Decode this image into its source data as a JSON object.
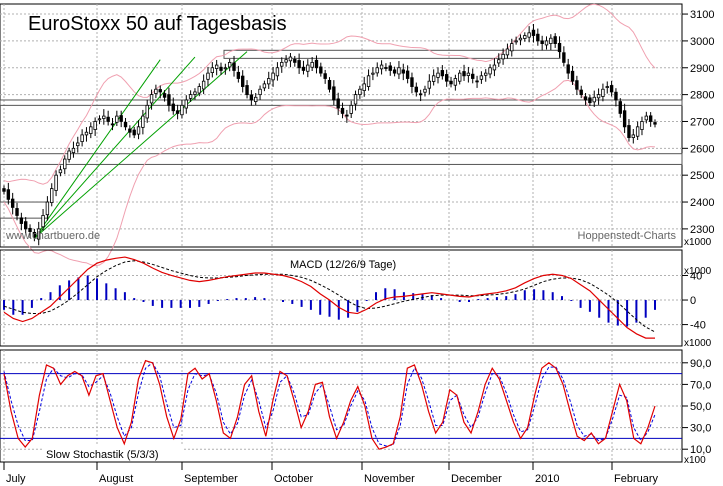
{
  "colors": {
    "background": "#ffffff",
    "grid": "#b0b0b0",
    "candle_up": "#ffffff",
    "candle_down": "#000000",
    "bollinger": "#f0a0b0",
    "trendline": "#00a000",
    "macd_line": "#e00000",
    "macd_signal": "#000000",
    "macd_hist": "#0000c0",
    "stoch_k": "#e00000",
    "stoch_d": "#0000e0",
    "stoch_level": "#0000c0"
  },
  "chart_data": [
    {
      "type": "candlestick",
      "title": "EuroStoxx 50 auf Tagesbasis",
      "source_left": "www.chartbuero.de",
      "source_right": "Hoppenstedt-Charts",
      "scale_note": "x1000",
      "y_ticks": [
        2300,
        2400,
        2500,
        2600,
        2700,
        2800,
        2900,
        3000,
        3100
      ],
      "ylim": [
        2240,
        3130
      ],
      "x_labels": [
        "July",
        "August",
        "September",
        "October",
        "November",
        "December",
        "2010",
        "February"
      ],
      "close": [
        2440,
        2410,
        2380,
        2350,
        2320,
        2300,
        2290,
        2270,
        2300,
        2350,
        2400,
        2450,
        2500,
        2520,
        2560,
        2590,
        2600,
        2620,
        2650,
        2660,
        2680,
        2700,
        2710,
        2720,
        2700,
        2690,
        2720,
        2700,
        2680,
        2660,
        2650,
        2680,
        2720,
        2760,
        2800,
        2820,
        2810,
        2790,
        2760,
        2740,
        2730,
        2760,
        2780,
        2800,
        2810,
        2830,
        2850,
        2880,
        2900,
        2910,
        2890,
        2900,
        2920,
        2890,
        2860,
        2830,
        2800,
        2780,
        2790,
        2820,
        2840,
        2860,
        2880,
        2900,
        2920,
        2930,
        2940,
        2920,
        2900,
        2890,
        2910,
        2920,
        2900,
        2880,
        2860,
        2820,
        2780,
        2750,
        2730,
        2720,
        2760,
        2800,
        2820,
        2840,
        2870,
        2880,
        2900,
        2910,
        2900,
        2890,
        2880,
        2900,
        2880,
        2860,
        2830,
        2810,
        2800,
        2820,
        2850,
        2870,
        2880,
        2870,
        2850,
        2840,
        2860,
        2880,
        2870,
        2880,
        2860,
        2850,
        2870,
        2880,
        2900,
        2910,
        2930,
        2950,
        2970,
        2990,
        3000,
        3010,
        3020,
        3030,
        3020,
        3000,
        2990,
        3000,
        3010,
        2990,
        2960,
        2920,
        2880,
        2850,
        2820,
        2800,
        2780,
        2770,
        2790,
        2800,
        2820,
        2830,
        2810,
        2780,
        2730,
        2680,
        2640,
        2650,
        2680,
        2700,
        2720,
        2700,
        2690
      ],
      "support_zones": [
        [
          2935,
          2965
        ],
        [
          2760,
          2780
        ],
        [
          2540,
          2580
        ],
        [
          2340,
          2400
        ]
      ]
    },
    {
      "type": "line",
      "title": "MACD (12/26/9 Tage)",
      "scale_note": "x1000",
      "y_ticks": [
        40,
        0,
        -40
      ],
      "series": [
        {
          "name": "MACD",
          "values": [
            -20,
            -30,
            -35,
            -30,
            -20,
            -10,
            5,
            20,
            35,
            50,
            60,
            65,
            68,
            70,
            66,
            60,
            52,
            45,
            40,
            36,
            32,
            30,
            32,
            35,
            38,
            40,
            42,
            44,
            44,
            42,
            40,
            36,
            30,
            22,
            10,
            0,
            -12,
            -20,
            -22,
            -15,
            -5,
            2,
            5,
            6,
            8,
            10,
            12,
            10,
            8,
            6,
            5,
            8,
            10,
            12,
            15,
            20,
            28,
            35,
            40,
            42,
            40,
            35,
            25,
            15,
            0,
            -15,
            -30,
            -45,
            -55,
            -62,
            -62
          ]
        },
        {
          "name": "Signal",
          "values": [
            -10,
            -15,
            -20,
            -22,
            -22,
            -18,
            -10,
            0,
            12,
            25,
            38,
            48,
            56,
            62,
            64,
            62,
            58,
            53,
            48,
            44,
            40,
            37,
            36,
            36,
            37,
            38,
            40,
            41,
            42,
            42,
            42,
            40,
            37,
            32,
            25,
            17,
            8,
            -2,
            -10,
            -14,
            -13,
            -10,
            -6,
            -2,
            1,
            4,
            7,
            8,
            8,
            8,
            7,
            7,
            8,
            9,
            11,
            14,
            18,
            24,
            30,
            34,
            36,
            36,
            33,
            27,
            18,
            8,
            -4,
            -18,
            -32,
            -44,
            -52
          ]
        }
      ]
    },
    {
      "type": "line",
      "title": "Slow Stochastik (5/3/3)",
      "scale_note": "x100",
      "y_ticks": [
        90.0,
        70.0,
        50.0,
        30.0,
        10.0
      ],
      "levels": [
        80,
        20
      ],
      "series": [
        {
          "name": "%K",
          "values": [
            80,
            45,
            20,
            12,
            20,
            60,
            88,
            85,
            70,
            78,
            82,
            78,
            60,
            78,
            80,
            55,
            30,
            15,
            35,
            75,
            92,
            90,
            70,
            40,
            20,
            38,
            80,
            85,
            75,
            80,
            55,
            25,
            20,
            40,
            70,
            78,
            45,
            22,
            55,
            82,
            78,
            55,
            30,
            45,
            70,
            72,
            40,
            20,
            35,
            55,
            68,
            50,
            20,
            10,
            12,
            15,
            40,
            85,
            88,
            70,
            45,
            25,
            35,
            65,
            60,
            35,
            25,
            45,
            70,
            85,
            75,
            55,
            35,
            20,
            30,
            60,
            85,
            90,
            85,
            70,
            45,
            22,
            18,
            25,
            15,
            20,
            45,
            70,
            55,
            20,
            15,
            30,
            50
          ]
        },
        {
          "name": "%D",
          "values": [
            82,
            55,
            32,
            18,
            18,
            45,
            75,
            85,
            78,
            76,
            80,
            79,
            68,
            72,
            78,
            62,
            40,
            22,
            30,
            62,
            85,
            90,
            78,
            52,
            30,
            32,
            65,
            80,
            78,
            79,
            62,
            35,
            24,
            34,
            60,
            74,
            55,
            30,
            45,
            72,
            78,
            62,
            40,
            42,
            62,
            70,
            50,
            28,
            32,
            50,
            64,
            55,
            30,
            15,
            13,
            14,
            32,
            70,
            85,
            76,
            55,
            32,
            32,
            55,
            60,
            42,
            30,
            40,
            62,
            80,
            78,
            62,
            42,
            26,
            28,
            50,
            75,
            86,
            86,
            75,
            55,
            32,
            22,
            24,
            18,
            20,
            38,
            60,
            58,
            30,
            18,
            26,
            42
          ]
        }
      ]
    }
  ]
}
